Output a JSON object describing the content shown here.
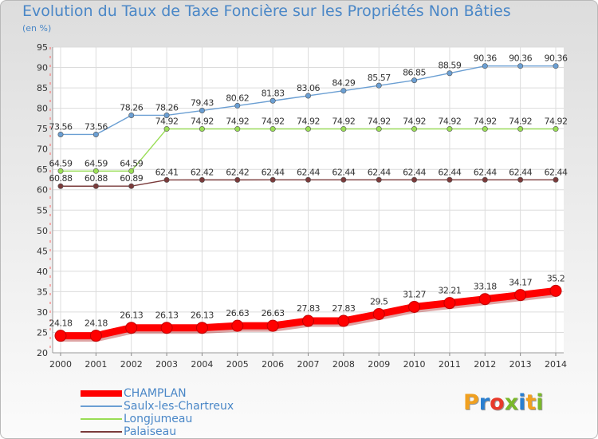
{
  "title": "Evolution du Taux de Taxe Foncière sur les Propriétés Non Bâties",
  "subtitle": "(en %)",
  "colors": {
    "champlan": "#ff0000",
    "saulx": "#6b9fd3",
    "longjumeau": "#99dd55",
    "palaiseau": "#7a3b3b",
    "axis_text": "#333333",
    "title": "#4a87c7"
  },
  "chart_data": {
    "type": "line",
    "title": "Evolution du Taux de Taxe Foncière sur les Propriétés Non Bâties",
    "ylabel": "(en %)",
    "xlabel": "",
    "x": [
      "2000",
      "2001",
      "2002",
      "2003",
      "2004",
      "2005",
      "2006",
      "2007",
      "2008",
      "2009",
      "2010",
      "2011",
      "2012",
      "2013",
      "2014"
    ],
    "ylim": [
      20,
      95
    ],
    "yticks": [
      "20",
      "25",
      "30",
      "35",
      "40",
      "45",
      "50",
      "55",
      "60",
      "65",
      "70",
      "75",
      "80",
      "85",
      "90",
      "95"
    ],
    "grid": true,
    "legend": "bottom-left",
    "series": [
      {
        "name": "CHAMPLAN",
        "color": "#ff0000",
        "values": [
          24.18,
          24.18,
          26.13,
          26.13,
          26.13,
          26.63,
          26.63,
          27.83,
          27.83,
          29.5,
          31.27,
          32.21,
          33.18,
          34.17,
          35.2
        ],
        "labels": [
          "24.18",
          "24.18",
          "26.13",
          "26.13",
          "26.13",
          "26.63",
          "26.63",
          "27.83",
          "27.83",
          "29.5",
          "31.27",
          "32.21",
          "33.18",
          "34.17",
          "35.2"
        ]
      },
      {
        "name": "Saulx-les-Chartreux",
        "color": "#6b9fd3",
        "values": [
          73.56,
          73.56,
          78.26,
          78.26,
          79.43,
          80.62,
          81.83,
          83.06,
          84.29,
          85.57,
          86.85,
          88.59,
          90.36,
          90.36,
          90.36
        ],
        "labels": [
          "73.56",
          "73.56",
          "78.26",
          "78.26",
          "79.43",
          "80.62",
          "81.83",
          "83.06",
          "84.29",
          "85.57",
          "86.85",
          "88.59",
          "90.36",
          "90.36",
          "90.36"
        ]
      },
      {
        "name": "Longjumeau",
        "color": "#99dd55",
        "values": [
          64.59,
          64.59,
          64.59,
          74.92,
          74.92,
          74.92,
          74.92,
          74.92,
          74.92,
          74.92,
          74.92,
          74.92,
          74.92,
          74.92,
          74.92
        ],
        "labels": [
          "64.59",
          "64.59",
          "64.59",
          "74.92",
          "74.92",
          "74.92",
          "74.92",
          "74.92",
          "74.92",
          "74.92",
          "74.92",
          "74.92",
          "74.92",
          "74.92",
          "74.92"
        ]
      },
      {
        "name": "Palaiseau",
        "color": "#7a3b3b",
        "values": [
          60.88,
          60.88,
          60.89,
          62.41,
          62.42,
          62.42,
          62.44,
          62.44,
          62.44,
          62.44,
          62.44,
          62.44,
          62.44,
          62.44,
          62.44
        ],
        "labels": [
          "60.88",
          "60.88",
          "60.89",
          "62.41",
          "62.42",
          "62.42",
          "62.44",
          "62.44",
          "62.44",
          "62.44",
          "62.44",
          "62.44",
          "62.44",
          "62.44",
          "62.44"
        ]
      }
    ]
  },
  "legend": {
    "items": [
      "CHAMPLAN",
      "Saulx-les-Chartreux",
      "Longjumeau",
      "Palaiseau"
    ]
  },
  "logo": {
    "text": "Proxiti",
    "letters": [
      "P",
      "r",
      "o",
      "x",
      "i",
      "t",
      "i"
    ],
    "letter_colors": [
      "#f0a020",
      "#2a7fd0",
      "#e83a2a",
      "#7ab82a",
      "#2a7fd0",
      "#f0a020",
      "#7ab82a"
    ]
  }
}
